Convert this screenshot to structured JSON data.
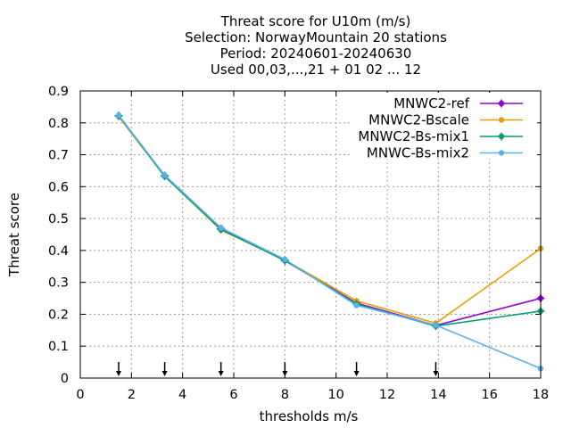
{
  "chart_data": {
    "type": "line",
    "title_lines": [
      "Threat score  for U10m (m/s)",
      "Selection: NorwayMountain      20 stations",
      "Period: 20240601-20240630",
      "Used 00,03,...,21 + 01 02 ... 12"
    ],
    "xlabel": "thresholds m/s",
    "ylabel": "Threat score",
    "xlim": [
      0,
      18
    ],
    "ylim": [
      0,
      0.9
    ],
    "xticks": [
      "0",
      "2",
      "4",
      "6",
      "8",
      "10",
      "12",
      "14",
      "16",
      "18"
    ],
    "yticks": [
      "0",
      "0.1",
      "0.2",
      "0.3",
      "0.4",
      "0.5",
      "0.6",
      "0.7",
      "0.8",
      "0.9"
    ],
    "grid": true,
    "legend_position": "top-right",
    "threshold_markers": [
      1.5,
      3.3,
      5.5,
      8.0,
      10.8,
      13.9
    ],
    "series": [
      {
        "name": "MNWC2-ref",
        "color": "#9400d3",
        "marker": "plus-dot",
        "x": [
          1.5,
          3.3,
          5.5,
          8.0,
          10.8,
          13.9,
          18
        ],
        "y": [
          0.822,
          0.634,
          0.468,
          0.368,
          0.235,
          0.165,
          0.25
        ]
      },
      {
        "name": "MNWC2-Bscale",
        "color": "#e69f00",
        "marker": "dot",
        "x": [
          1.5,
          3.3,
          5.5,
          8.0,
          10.8,
          13.9,
          18
        ],
        "y": [
          0.82,
          0.632,
          0.464,
          0.37,
          0.242,
          0.172,
          0.406
        ]
      },
      {
        "name": "MNWC2-Bs-mix1",
        "color": "#009e73",
        "marker": "plus-dot",
        "x": [
          1.5,
          3.3,
          5.5,
          8.0,
          10.8,
          13.9,
          18
        ],
        "y": [
          0.822,
          0.633,
          0.466,
          0.369,
          0.232,
          0.163,
          0.21
        ]
      },
      {
        "name": "MNWC-Bs-mix2",
        "color": "#56b4e9",
        "marker": "dot",
        "x": [
          1.5,
          3.3,
          5.5,
          8.0,
          10.8,
          13.9,
          18
        ],
        "y": [
          0.824,
          0.636,
          0.471,
          0.372,
          0.228,
          0.166,
          0.03
        ]
      }
    ]
  }
}
